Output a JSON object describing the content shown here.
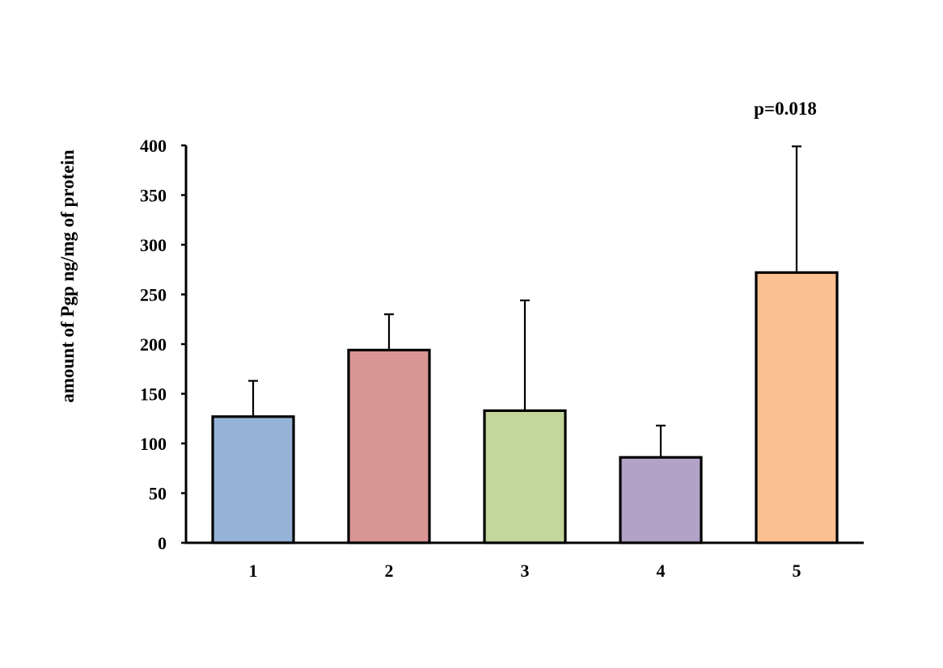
{
  "chart_data": {
    "type": "bar",
    "title": "",
    "xlabel": "",
    "ylabel": "amount of Pgp ng/mg of protein",
    "categories": [
      "1",
      "2",
      "3",
      "4",
      "5"
    ],
    "values": [
      127,
      194,
      133,
      86,
      272
    ],
    "error_upper": [
      163,
      230,
      244,
      118,
      399
    ],
    "ylim": [
      0,
      400
    ],
    "yticks": [
      0,
      50,
      100,
      150,
      200,
      250,
      300,
      350,
      400
    ],
    "grid": false,
    "legend": "none",
    "annotations": [
      {
        "text": "p=0.018",
        "category": "5"
      }
    ],
    "colors": [
      "#95b3d7",
      "#d99594",
      "#c3d69b",
      "#b2a2c7",
      "#fac090"
    ],
    "edge_color": "#000000"
  }
}
